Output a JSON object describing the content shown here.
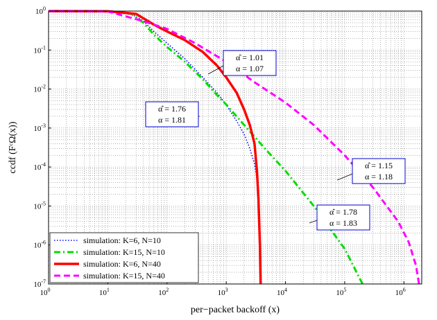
{
  "chart_data": {
    "type": "line",
    "xlabel": "per−packet backoff (x)",
    "ylabel": "ccdf (FᶜΩ(x))",
    "xscale": "log",
    "yscale": "log",
    "xlim": [
      1,
      2000000
    ],
    "ylim": [
      1e-07,
      1
    ],
    "x_tick_labels": [
      "10^0",
      "10^1",
      "10^2",
      "10^3",
      "10^4",
      "10^5",
      "10^6"
    ],
    "y_tick_labels": [
      "10^0",
      "10^-1",
      "10^-2",
      "10^-3",
      "10^-4",
      "10^-5",
      "10^-6",
      "10^-7"
    ],
    "grid": true,
    "legend_position": "bottom-left",
    "series": [
      {
        "name": "simulation: K=6, N=10",
        "color": "#0000ff",
        "style": "dotted",
        "x": [
          1,
          10,
          25,
          40,
          60,
          100,
          200,
          400,
          700,
          1000,
          1500,
          2000,
          2500,
          3000,
          3300,
          3500
        ],
        "y": [
          1,
          0.98,
          0.85,
          0.55,
          0.3,
          0.15,
          0.06,
          0.02,
          0.008,
          0.004,
          0.0015,
          0.0007,
          0.0003,
          0.00012,
          5e-05,
          1e-05
        ]
      },
      {
        "name": "simulation: K=15, N=10",
        "color": "#00dd00",
        "style": "dashdot",
        "x": [
          1,
          10,
          25,
          40,
          60,
          100,
          200,
          400,
          700,
          1000,
          2000,
          5000,
          10000,
          30000,
          100000,
          200000
        ],
        "y": [
          1,
          0.98,
          0.85,
          0.5,
          0.25,
          0.12,
          0.05,
          0.018,
          0.007,
          0.004,
          0.0012,
          0.00025,
          8e-05,
          1e-05,
          8e-07,
          1e-07
        ]
      },
      {
        "name": "simulation: K=6, N=40",
        "color": "#ff0000",
        "style": "solid",
        "x": [
          1,
          10,
          30,
          60,
          100,
          200,
          400,
          700,
          1000,
          1500,
          2000,
          2500,
          3000,
          3300,
          3500,
          3700,
          3800
        ],
        "y": [
          1,
          0.99,
          0.85,
          0.45,
          0.3,
          0.18,
          0.09,
          0.04,
          0.02,
          0.008,
          0.003,
          0.0012,
          0.0004,
          8e-05,
          1.5e-05,
          1e-06,
          1e-07
        ]
      },
      {
        "name": "simulation: K=15, N=40",
        "color": "#ff00ff",
        "style": "dashed",
        "x": [
          1,
          10,
          40,
          100,
          300,
          1000,
          3000,
          10000,
          30000,
          100000,
          300000,
          800000,
          1200000,
          1600000,
          1800000
        ],
        "y": [
          1,
          0.98,
          0.55,
          0.35,
          0.15,
          0.05,
          0.015,
          0.0045,
          0.0012,
          0.0002,
          3e-05,
          4e-06,
          1.2e-06,
          3e-07,
          1e-07
        ]
      }
    ],
    "annotations": [
      {
        "id": "k6n40",
        "line1": "α̂ = 1.01",
        "line2": "α = 1.07",
        "x": 1000,
        "y": 0.04
      },
      {
        "id": "k6n10",
        "line1": "α̂ = 1.76",
        "line2": "α = 1.81",
        "x": 300,
        "y": 0.002
      },
      {
        "id": "k15n40",
        "line1": "α̂ = 1.15",
        "line2": "α = 1.18",
        "x": 40000,
        "y": 3e-05
      },
      {
        "id": "k15n10",
        "line1": "α̂ = 1.78",
        "line2": "α = 1.83",
        "x": 8000,
        "y": 1.5e-06
      }
    ]
  }
}
